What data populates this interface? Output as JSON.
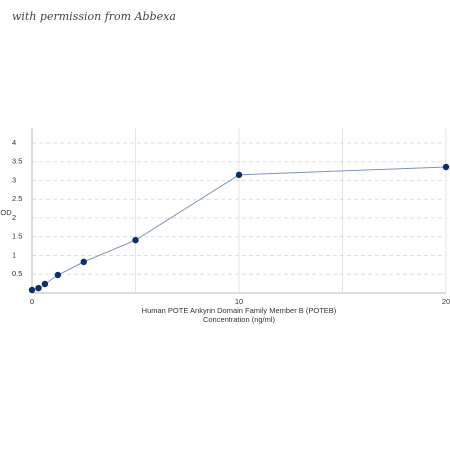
{
  "chart_data": {
    "type": "line",
    "annotation": "with permission from Abbexa",
    "ylabel": "OD",
    "xlabel": [
      "Human POTE Ankyrin Domain Family Member B (POTEB)",
      "Concentration (ng/ml)"
    ],
    "x": [
      0,
      0.3125,
      0.625,
      1.25,
      2.5,
      5,
      10,
      20
    ],
    "series": [
      {
        "color": "#0d2d6b",
        "line_color": "#7f93b8",
        "values": [
          0.08,
          0.13,
          0.24,
          0.48,
          0.83,
          1.41,
          3.15,
          3.36
        ]
      }
    ],
    "xlim": [
      0,
      20
    ],
    "xticks": [
      0,
      10,
      20
    ],
    "ylim": [
      0,
      4.4
    ],
    "yticks": [
      0.5,
      1,
      1.5,
      2,
      2.5,
      3,
      3.5,
      4
    ],
    "grid": true
  }
}
